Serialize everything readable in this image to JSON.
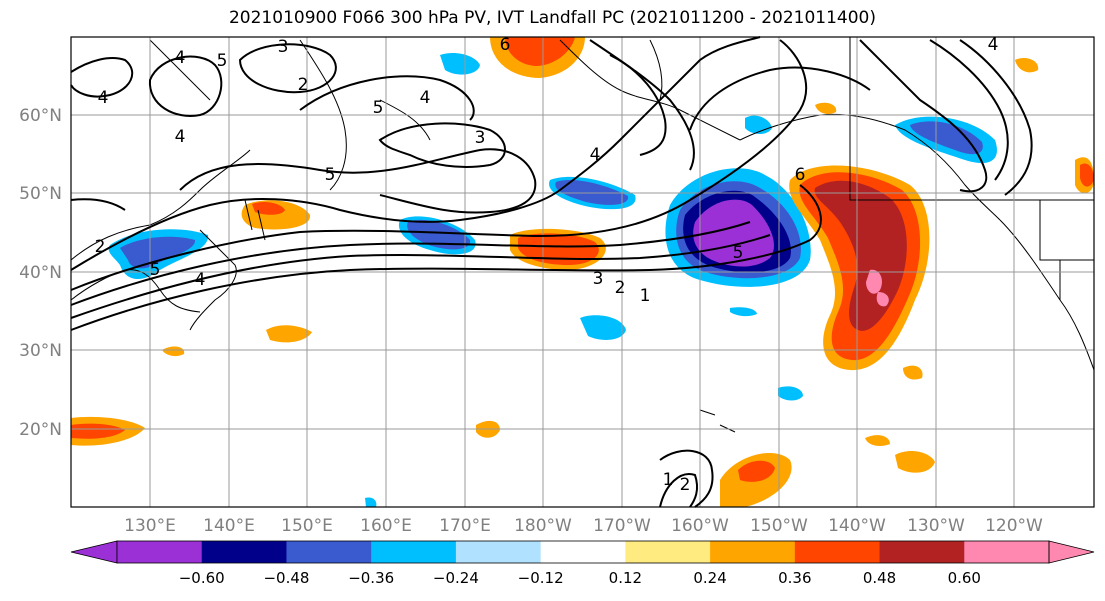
{
  "title": "2021010900 F066 300 hPa PV, IVT Landfall PC (2021011200 - 2021011400)",
  "lat_labels": [
    "60°N",
    "50°N",
    "40°N",
    "30°N",
    "20°N"
  ],
  "lon_labels": [
    "130°E",
    "140°E",
    "150°E",
    "160°E",
    "170°E",
    "180°W",
    "170°W",
    "160°W",
    "150°W",
    "140°W",
    "130°W",
    "120°W"
  ],
  "colorbar": {
    "colors": [
      "#9b30d6",
      "#00008b",
      "#3a5ad0",
      "#00bfff",
      "#b0e2ff",
      "#ffffff",
      "#ffeb80",
      "#ffa500",
      "#ff4500",
      "#b22222",
      "#ff88b0"
    ],
    "tick_labels": [
      "−0.60",
      "−0.48",
      "−0.36",
      "−0.24",
      "−0.12",
      "0.12",
      "0.24",
      "0.36",
      "0.48",
      "0.60"
    ]
  },
  "contour_labels": [
    "6",
    "3",
    "2",
    "4",
    "5",
    "4",
    "5",
    "4",
    "3",
    "4",
    "6",
    "5",
    "3",
    "2",
    "1",
    "5",
    "4",
    "2",
    "5",
    "4",
    "1",
    "2",
    "4"
  ]
}
